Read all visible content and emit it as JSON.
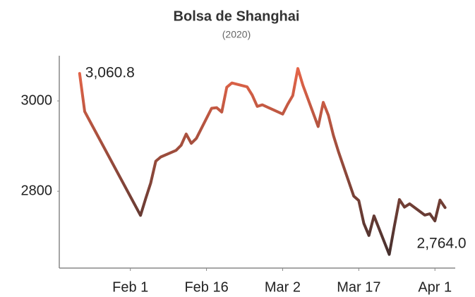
{
  "chart_data": {
    "type": "line",
    "title": "Bolsa de Shanghai",
    "subtitle": "(2020)",
    "x": [
      "2020-01-22",
      "2020-01-23",
      "2020-02-03",
      "2020-02-04",
      "2020-02-05",
      "2020-02-06",
      "2020-02-07",
      "2020-02-10",
      "2020-02-11",
      "2020-02-12",
      "2020-02-13",
      "2020-02-14",
      "2020-02-17",
      "2020-02-18",
      "2020-02-19",
      "2020-02-20",
      "2020-02-21",
      "2020-02-24",
      "2020-02-25",
      "2020-02-26",
      "2020-02-27",
      "2020-03-02",
      "2020-03-03",
      "2020-03-04",
      "2020-03-05",
      "2020-03-06",
      "2020-03-09",
      "2020-03-10",
      "2020-03-11",
      "2020-03-12",
      "2020-03-13",
      "2020-03-16",
      "2020-03-17",
      "2020-03-18",
      "2020-03-19",
      "2020-03-20",
      "2020-03-23",
      "2020-03-24",
      "2020-03-25",
      "2020-03-26",
      "2020-03-27",
      "2020-03-30",
      "2020-03-31",
      "2020-04-01",
      "2020-04-02",
      "2020-04-03"
    ],
    "series": [
      {
        "name": "Bolsa de Shanghai",
        "gradient": [
          "#f0684a",
          "#3a2c2c"
        ],
        "values": [
          3060.8,
          2976.5,
          2746.6,
          2783.3,
          2818.1,
          2866.5,
          2876.0,
          2890.5,
          2901.7,
          2926.9,
          2906.1,
          2917.0,
          2983.6,
          2985.0,
          2975.4,
          3030.2,
          3039.7,
          3031.2,
          3013.1,
          2987.9,
          2991.3,
          2970.9,
          2992.9,
          3011.7,
          3071.7,
          3034.5,
          2943.3,
          2996.8,
          2968.5,
          2923.5,
          2887.4,
          2789.3,
          2779.6,
          2728.8,
          2702.1,
          2745.6,
          2660.2,
          2722.4,
          2781.6,
          2764.9,
          2772.2,
          2747.2,
          2750.3,
          2734.5,
          2780.6,
          2764.0
        ],
        "value_labels": [
          "3,060.8",
          null,
          null,
          null,
          null,
          null,
          null,
          null,
          null,
          null,
          null,
          null,
          null,
          null,
          null,
          null,
          null,
          null,
          null,
          null,
          null,
          null,
          null,
          null,
          null,
          null,
          null,
          null,
          null,
          null,
          null,
          null,
          null,
          null,
          null,
          null,
          null,
          null,
          null,
          null,
          null,
          null,
          null,
          null,
          null,
          "2,764.0"
        ]
      }
    ],
    "xlim": [
      "2020-01-18",
      "2020-04-05"
    ],
    "xticks": [
      {
        "value": "2020-02-01",
        "label": "Feb 1"
      },
      {
        "value": "2020-02-16",
        "label": "Feb 16"
      },
      {
        "value": "2020-03-02",
        "label": "Mar 2"
      },
      {
        "value": "2020-03-17",
        "label": "Mar 17"
      },
      {
        "value": "2020-04-01",
        "label": "Apr 1"
      }
    ],
    "ylim": [
      2630,
      3100
    ],
    "yticks": [
      2800,
      3000
    ],
    "grid": false
  }
}
